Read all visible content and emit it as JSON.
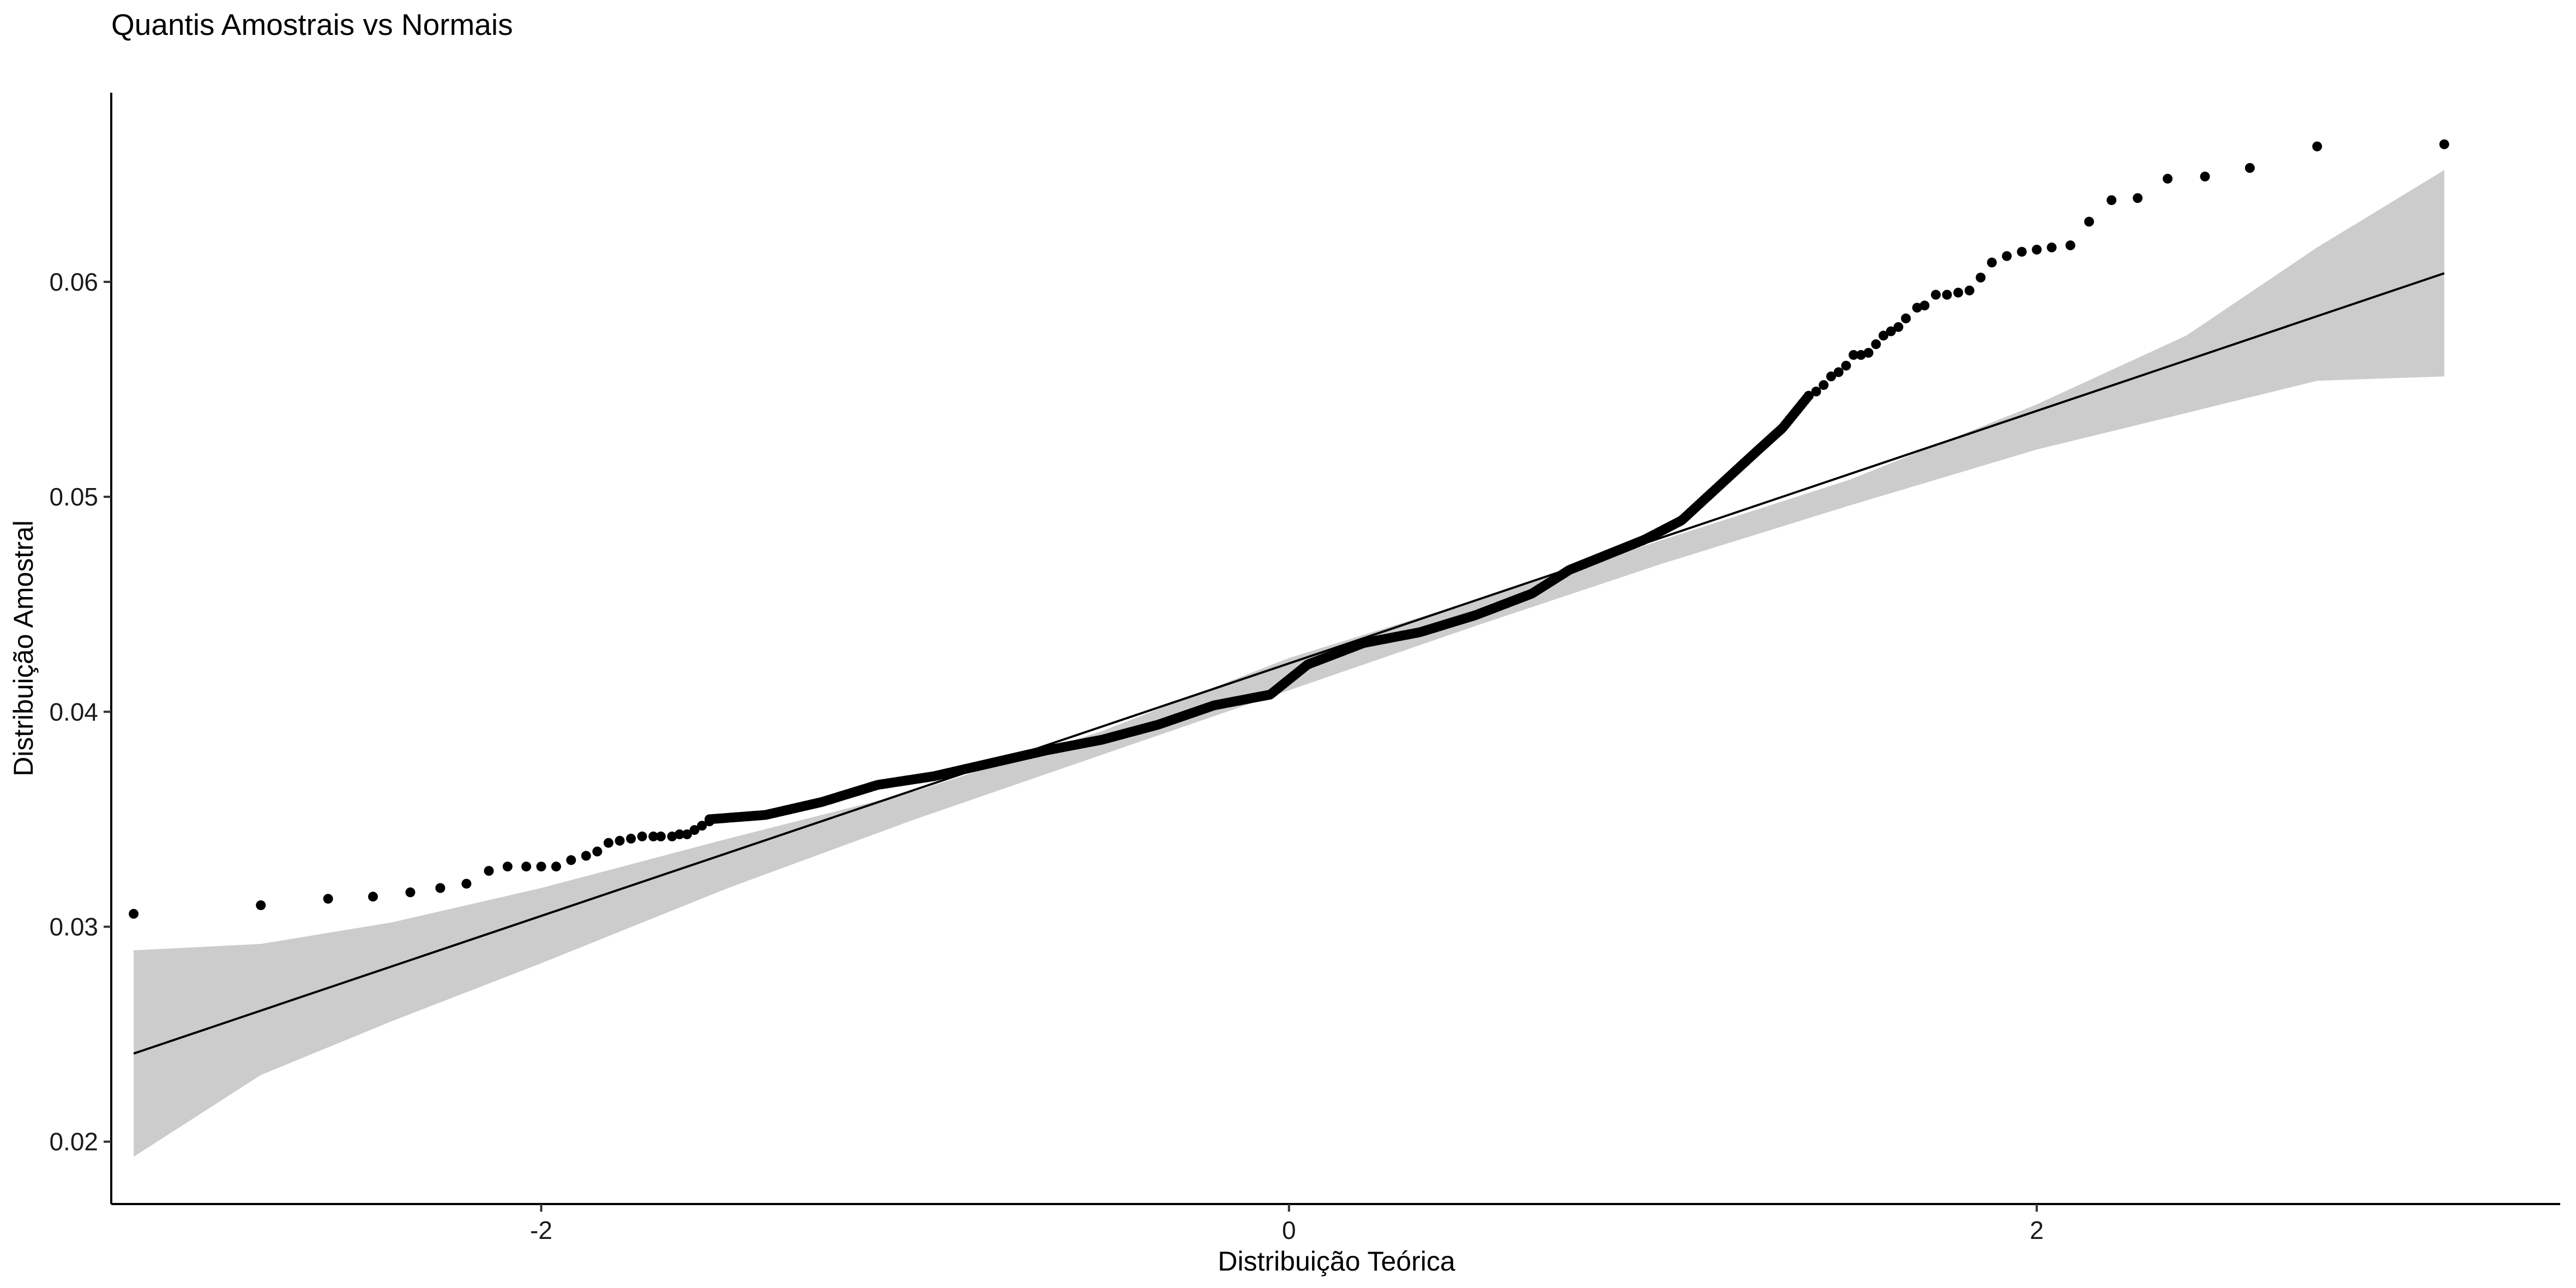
{
  "chart_data": {
    "type": "scatter",
    "title": "Quantis Amostrais vs Normais",
    "xlabel": "Distribuição Teórica",
    "ylabel": "Distribuição Amostral",
    "xlim": [
      -3.15,
      3.4
    ],
    "ylim": [
      0.0171,
      0.0688
    ],
    "x_ticks": [
      -2,
      0,
      2
    ],
    "x_tick_labels": [
      "-2",
      "0",
      "2"
    ],
    "y_ticks": [
      0.02,
      0.03,
      0.04,
      0.05,
      0.06
    ],
    "y_tick_labels": [
      "0.02",
      "0.03",
      "0.04",
      "0.05",
      "0.06"
    ],
    "grid": false,
    "legend": "none",
    "colors": {
      "points": "#000000",
      "reference_line": "#000000",
      "confidence_band": "#cccccc"
    },
    "reference_line": {
      "x": [
        -3.09,
        3.09
      ],
      "y": [
        0.0241,
        0.0604
      ]
    },
    "confidence_band": {
      "x": [
        -3.09,
        -2.75,
        -2.4,
        -2.0,
        -1.5,
        -1.0,
        -0.5,
        0.0,
        0.5,
        1.0,
        1.5,
        2.0,
        2.4,
        2.75,
        3.09
      ],
      "lower": [
        0.0193,
        0.0231,
        0.0256,
        0.0283,
        0.0318,
        0.035,
        0.038,
        0.041,
        0.044,
        0.0469,
        0.0496,
        0.0522,
        0.0539,
        0.0554,
        0.0556
      ],
      "upper": [
        0.0289,
        0.0292,
        0.0302,
        0.0318,
        0.0341,
        0.0363,
        0.0391,
        0.0425,
        0.0452,
        0.048,
        0.0508,
        0.0543,
        0.0575,
        0.0616,
        0.0652
      ]
    },
    "points_upper_tail": {
      "x": [
        3.09,
        2.75,
        2.57,
        2.45,
        2.35,
        2.27,
        2.2,
        2.14,
        2.09,
        2.04,
        2.0,
        1.96,
        1.92,
        1.88,
        1.85,
        1.82,
        1.79,
        1.76,
        1.73,
        1.7,
        1.68,
        1.65,
        1.63,
        1.61,
        1.59,
        1.57,
        1.55,
        1.53,
        1.51,
        1.49,
        1.47,
        1.45,
        1.43,
        1.41,
        1.39
      ],
      "y": [
        0.0664,
        0.0663,
        0.0653,
        0.0649,
        0.0648,
        0.0639,
        0.0638,
        0.0628,
        0.0617,
        0.0616,
        0.0615,
        0.0614,
        0.0612,
        0.0609,
        0.0602,
        0.0596,
        0.0595,
        0.0594,
        0.0594,
        0.0589,
        0.0588,
        0.0583,
        0.0579,
        0.0577,
        0.0575,
        0.0571,
        0.0567,
        0.0566,
        0.0566,
        0.0561,
        0.0558,
        0.0556,
        0.0552,
        0.0549,
        0.0547
      ]
    },
    "points_lower_tail": {
      "x": [
        -3.09,
        -2.75,
        -2.57,
        -2.45,
        -2.35,
        -2.27,
        -2.2,
        -2.14,
        -2.09,
        -2.04,
        -2.0,
        -1.96,
        -1.92,
        -1.88,
        -1.85,
        -1.82,
        -1.79,
        -1.76,
        -1.73,
        -1.7,
        -1.68,
        -1.65,
        -1.63,
        -1.61,
        -1.59,
        -1.57,
        -1.55
      ],
      "y": [
        0.0306,
        0.031,
        0.0313,
        0.0314,
        0.0316,
        0.0318,
        0.032,
        0.0326,
        0.0328,
        0.0328,
        0.0328,
        0.0328,
        0.0331,
        0.0333,
        0.0335,
        0.0339,
        0.034,
        0.0341,
        0.0342,
        0.0342,
        0.0342,
        0.0342,
        0.0343,
        0.0343,
        0.0345,
        0.0347,
        0.0349
      ]
    },
    "points_body_trend": {
      "x": [
        -1.55,
        -1.4,
        -1.25,
        -1.1,
        -0.95,
        -0.8,
        -0.65,
        -0.5,
        -0.35,
        -0.2,
        -0.05,
        0.05,
        0.2,
        0.35,
        0.5,
        0.65,
        0.75,
        0.85,
        0.95,
        1.05,
        1.15,
        1.25,
        1.32,
        1.39
      ],
      "y": [
        0.035,
        0.0352,
        0.0358,
        0.0366,
        0.037,
        0.0376,
        0.0382,
        0.0387,
        0.0394,
        0.0403,
        0.0408,
        0.0422,
        0.0432,
        0.0437,
        0.0445,
        0.0455,
        0.0466,
        0.0473,
        0.048,
        0.0489,
        0.0505,
        0.0521,
        0.0532,
        0.0547
      ]
    },
    "body_point_count": 560
  }
}
